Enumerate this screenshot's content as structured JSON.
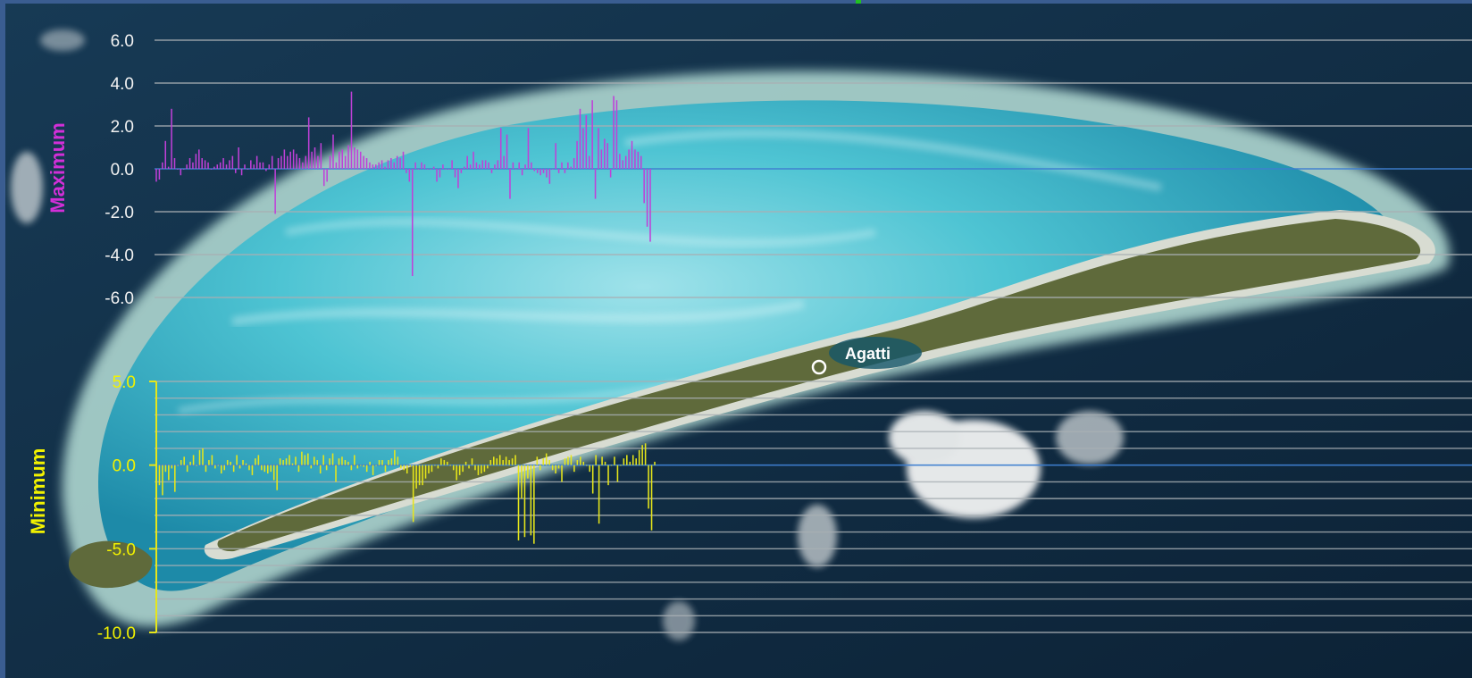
{
  "background": {
    "map_label": "Agatti",
    "colors": {
      "ocean": "#12304a",
      "lagoon": "#3fb6c9",
      "reef": "#8fd6dd",
      "island": "#5f6a3b",
      "beach": "#cfd6cd",
      "frame": "#3a5d91"
    }
  },
  "chart_data": [
    {
      "type": "bar",
      "name": "maximum-chart",
      "ylabel": "Maximum",
      "ylim": [
        -6.0,
        6.0
      ],
      "yticks": [
        "6.0",
        "4.0",
        "2.0",
        "0.0",
        "-2.0",
        "-4.0",
        "-6.0"
      ],
      "grid": true,
      "color": "#c040d8",
      "label_color": "#d22fd8",
      "zero_line_color": "#3f7fd0",
      "values": [
        -0.6,
        -0.5,
        0.3,
        1.3,
        0.1,
        2.8,
        0.5,
        0.0,
        -0.3,
        0.0,
        0.2,
        0.5,
        0.3,
        0.7,
        0.9,
        0.5,
        0.4,
        0.3,
        0.0,
        0.1,
        0.2,
        0.3,
        0.5,
        0.2,
        0.4,
        0.6,
        -0.2,
        1.0,
        -0.3,
        0.2,
        0.0,
        0.4,
        0.2,
        0.6,
        0.3,
        0.3,
        -0.1,
        0.2,
        0.6,
        -2.1,
        0.5,
        0.6,
        0.9,
        0.6,
        0.8,
        0.9,
        0.7,
        0.5,
        0.3,
        0.6,
        2.4,
        0.8,
        1.0,
        0.6,
        1.2,
        -0.8,
        -0.6,
        0.6,
        1.6,
        0.3,
        0.8,
        0.9,
        0.6,
        1.1,
        3.6,
        1.0,
        0.9,
        0.8,
        0.6,
        0.5,
        0.3,
        0.2,
        0.2,
        0.3,
        0.4,
        0.1,
        0.4,
        0.5,
        0.3,
        0.6,
        0.5,
        0.8,
        -0.2,
        -0.6,
        -5.0,
        0.3,
        0.0,
        0.3,
        0.2,
        0.0,
        0.0,
        0.1,
        -0.6,
        -0.4,
        0.2,
        0.0,
        0.0,
        0.4,
        -0.4,
        -0.9,
        -0.2,
        0.1,
        0.6,
        0.2,
        0.8,
        0.3,
        0.2,
        0.4,
        0.4,
        0.3,
        -0.2,
        0.2,
        0.4,
        1.9,
        0.6,
        1.6,
        -1.4,
        0.3,
        0.0,
        0.3,
        -0.3,
        0.2,
        1.9,
        0.3,
        -0.1,
        -0.2,
        -0.3,
        -0.2,
        -0.4,
        -0.7,
        0.0,
        1.2,
        -0.2,
        0.3,
        -0.2,
        0.3,
        0.1,
        0.5,
        1.3,
        2.8,
        1.9,
        2.5,
        0.6,
        3.2,
        -1.4,
        1.9,
        0.9,
        1.4,
        1.2,
        -0.4,
        3.4,
        3.2,
        0.7,
        0.4,
        0.6,
        0.9,
        1.3,
        0.9,
        0.8,
        0.6,
        -1.6,
        -2.7,
        -3.4
      ]
    },
    {
      "type": "bar",
      "name": "minimum-chart",
      "ylabel": "Minimum",
      "ylim": [
        -10.0,
        5.0
      ],
      "yticks": [
        "5.0",
        "0.0",
        "-5.0",
        "-10.0"
      ],
      "grid": true,
      "color": "#e6e61a",
      "label_color": "#f2f200",
      "zero_line_color": "#3f7fd0",
      "values": [
        -0.8,
        -1.2,
        -1.8,
        -0.4,
        -0.9,
        -0.2,
        -1.6,
        0.0,
        0.3,
        0.5,
        -0.4,
        0.2,
        0.6,
        0.0,
        0.9,
        1.0,
        -0.4,
        0.3,
        0.6,
        -0.2,
        0.0,
        -0.5,
        -0.3,
        0.3,
        0.2,
        -0.4,
        0.6,
        -0.2,
        0.3,
        0.1,
        -0.3,
        -0.6,
        0.4,
        0.6,
        -0.3,
        -0.4,
        -0.5,
        -0.4,
        -0.9,
        -1.5,
        0.4,
        0.3,
        0.4,
        0.6,
        0.1,
        0.5,
        -0.4,
        0.8,
        0.6,
        0.7,
        -0.2,
        0.5,
        0.3,
        -0.5,
        0.6,
        -0.3,
        0.4,
        0.7,
        -1.0,
        0.4,
        0.5,
        0.3,
        0.2,
        -0.3,
        0.6,
        -0.2,
        0.0,
        -0.1,
        -0.4,
        0.2,
        -0.6,
        0.0,
        0.3,
        0.3,
        -0.4,
        0.3,
        0.4,
        0.9,
        0.5,
        -0.2,
        -0.3,
        -0.5,
        -0.1,
        -3.4,
        -1.4,
        -1.2,
        -1.2,
        -0.8,
        -0.5,
        -0.4,
        0.0,
        -0.2,
        0.4,
        0.3,
        0.2,
        0.0,
        -0.3,
        -0.9,
        -0.6,
        -0.4,
        0.2,
        -0.2,
        0.4,
        -0.3,
        -0.6,
        -0.5,
        -0.4,
        -0.2,
        0.3,
        0.5,
        0.4,
        0.6,
        0.3,
        0.5,
        0.3,
        0.4,
        0.6,
        -4.5,
        -2.0,
        -4.3,
        -0.8,
        -4.2,
        -4.7,
        0.5,
        -0.3,
        0.4,
        0.7,
        0.3,
        -0.3,
        -0.5,
        -0.2,
        -1.0,
        0.4,
        0.5,
        0.6,
        -0.4,
        0.3,
        0.5,
        0.2,
        0.0,
        -0.4,
        -1.7,
        0.6,
        -3.5,
        0.5,
        0.2,
        -1.2,
        0.0,
        0.5,
        -1.0,
        0.0,
        0.4,
        0.6,
        0.2,
        0.6,
        0.4,
        0.9,
        1.2,
        1.3,
        -2.6,
        -3.9,
        0.2
      ]
    }
  ]
}
